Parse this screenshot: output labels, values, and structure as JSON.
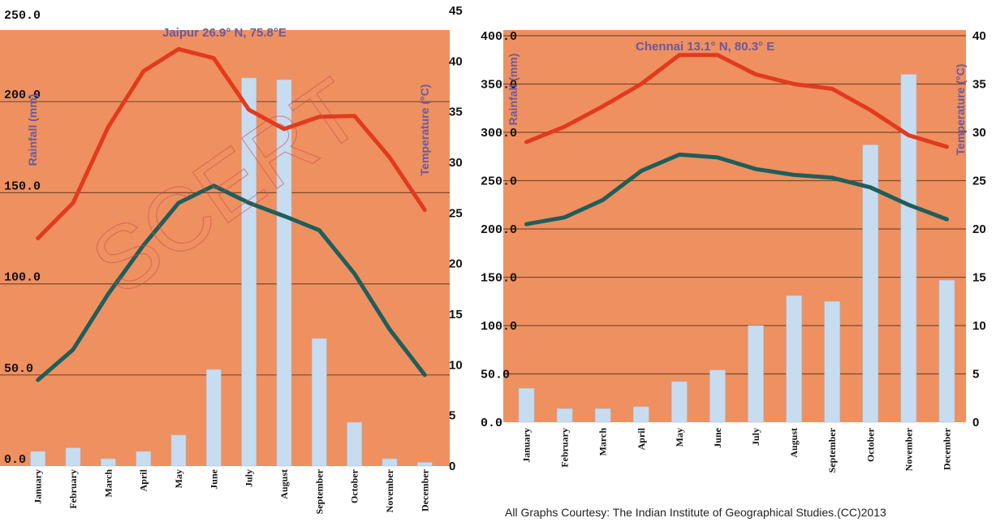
{
  "watermark": "SCERT",
  "credit": "All Graphs Courtesy: The Indian Institute of Geographical Studies.(CC)2013",
  "colors": {
    "background": "#ef9060",
    "grid": "#7a4a2a",
    "bars": "#c8dcf0",
    "max_temp_line": "#e23a1e",
    "min_temp_line": "#1f5e5a",
    "title_text": "#6a5a9c"
  },
  "chart_data": [
    {
      "type": "bar",
      "title": "Jaipur 26.9° N, 75.8°E",
      "ylabel": "Rainfall (mm)",
      "y2label": "Temperature (°C)",
      "categories": [
        "January",
        "February",
        "March",
        "April",
        "May",
        "June",
        "July",
        "August",
        "September",
        "October",
        "November",
        "December"
      ],
      "ylim": [
        0,
        250
      ],
      "yticks": [
        "0.0",
        "50.0",
        "100.0",
        "150.0",
        "200.0",
        "250.0"
      ],
      "y2lim": [
        0,
        45
      ],
      "y2ticks": [
        "0",
        "5",
        "10",
        "15",
        "20",
        "25",
        "30",
        "35",
        "40",
        "45"
      ],
      "grid": true,
      "series": [
        {
          "kind": "bar",
          "axis": "left",
          "values": [
            8,
            10,
            4,
            8,
            17,
            53,
            213,
            212,
            70,
            24,
            4,
            2
          ]
        },
        {
          "kind": "line",
          "axis": "right",
          "color": "#e23a1e",
          "values": [
            22.5,
            26,
            33.5,
            39,
            41.2,
            40.3,
            35.2,
            33.3,
            34.5,
            34.6,
            30.5,
            25.3
          ]
        },
        {
          "kind": "line",
          "axis": "right",
          "color": "#1f5e5a",
          "values": [
            8.5,
            11.5,
            17,
            21.8,
            26,
            27.7,
            26,
            24.7,
            23.3,
            19,
            13.5,
            9
          ]
        }
      ]
    },
    {
      "type": "bar",
      "title": "Chennai 13.1° N, 80.3° E",
      "ylabel": "Rainfall (mm)",
      "y2label": "Temperature (°C)",
      "categories": [
        "January",
        "February",
        "March",
        "April",
        "May",
        "June",
        "July",
        "August",
        "September",
        "October",
        "November",
        "December"
      ],
      "ylim": [
        0,
        400
      ],
      "yticks": [
        "0.0",
        "50.0",
        "100.0",
        "150.0",
        "200.0",
        "250.0",
        "300.0",
        "350.0",
        "400.0"
      ],
      "y2lim": [
        0,
        40
      ],
      "y2ticks": [
        "0",
        "5",
        "10",
        "15",
        "20",
        "25",
        "30",
        "35",
        "40"
      ],
      "grid": true,
      "series": [
        {
          "kind": "bar",
          "axis": "left",
          "values": [
            35,
            14,
            14,
            16,
            42,
            54,
            100,
            131,
            125,
            287,
            360,
            147
          ]
        },
        {
          "kind": "line",
          "axis": "right",
          "color": "#e23a1e",
          "values": [
            29,
            30.6,
            32.7,
            35,
            38,
            38,
            36,
            35,
            34.5,
            32.3,
            29.7,
            28.5
          ]
        },
        {
          "kind": "line",
          "axis": "right",
          "color": "#1f5e5a",
          "values": [
            20.5,
            21.2,
            23,
            26,
            27.7,
            27.4,
            26.2,
            25.6,
            25.3,
            24.3,
            22.5,
            21
          ]
        }
      ]
    }
  ]
}
